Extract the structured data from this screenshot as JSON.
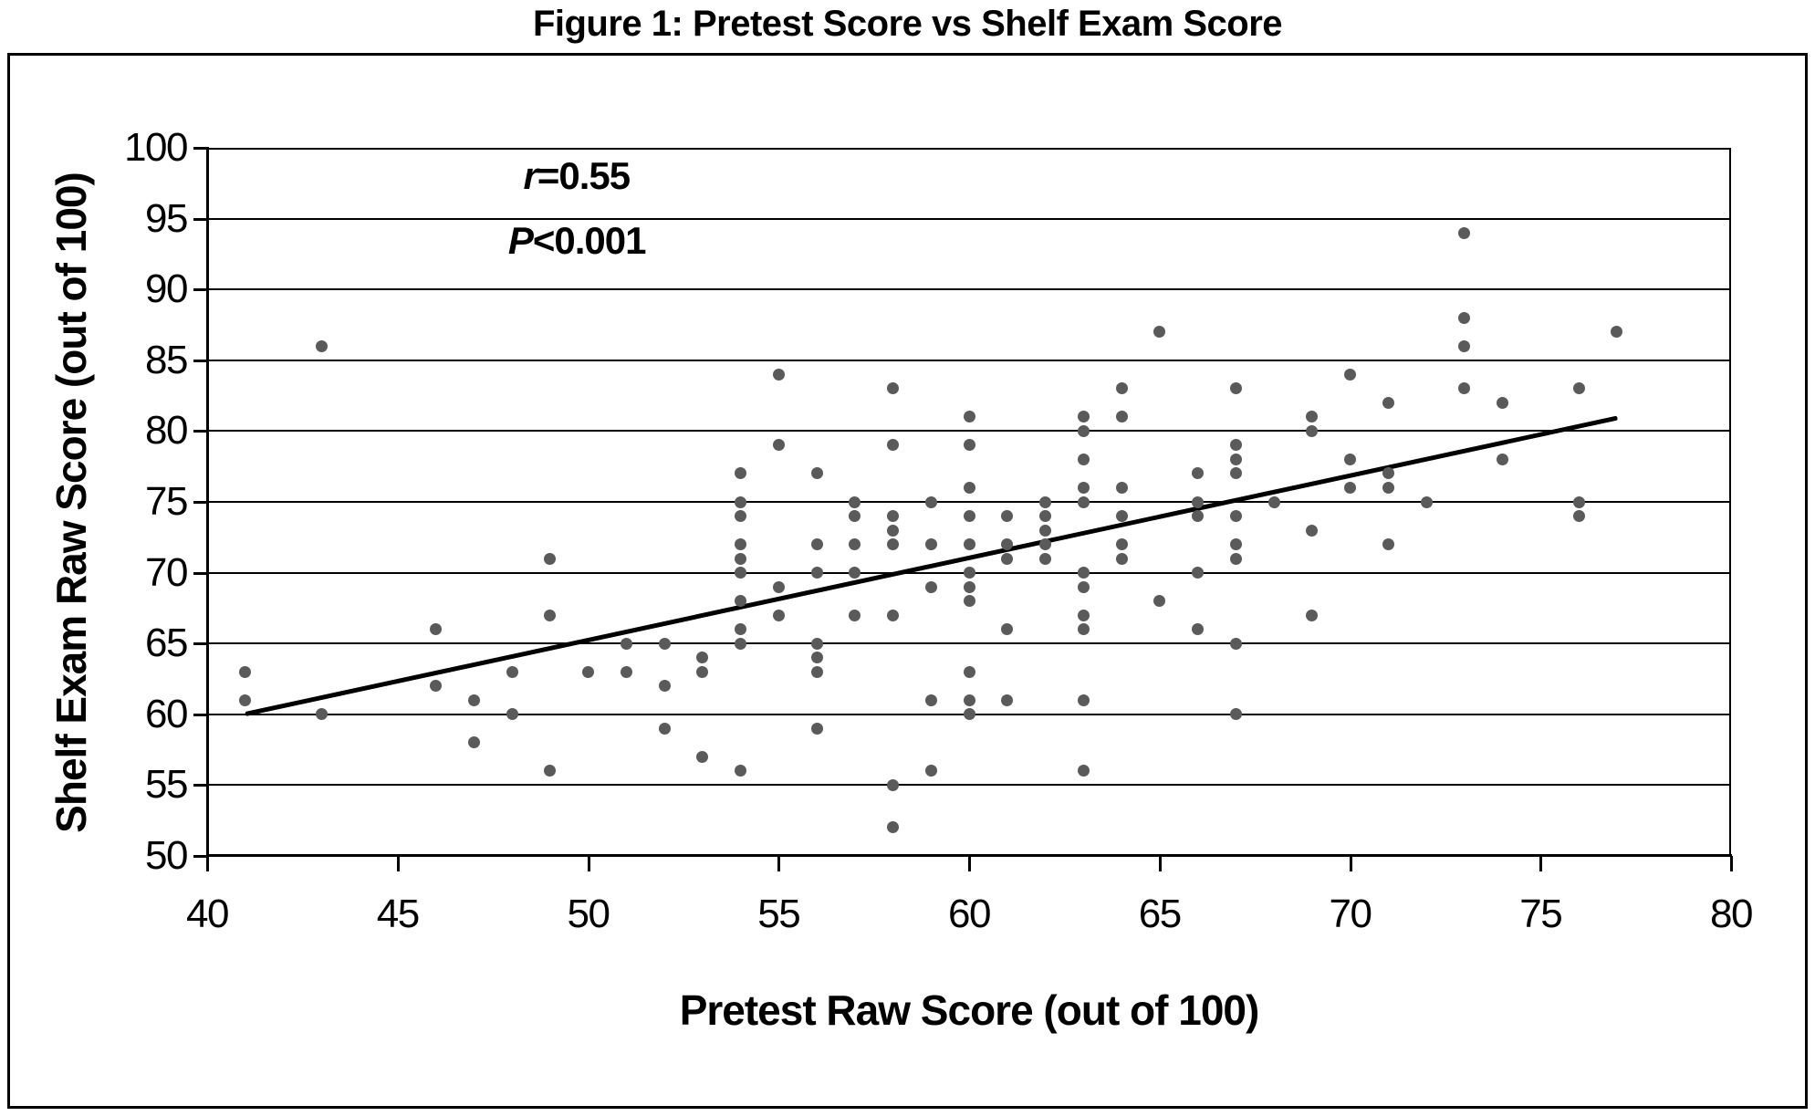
{
  "figure_title": "Figure 1: Pretest Score vs Shelf Exam Score",
  "chart_data": {
    "type": "scatter",
    "title": "Figure 1: Pretest Score vs Shelf Exam Score",
    "xlabel": "Pretest Raw Score (out of 100)",
    "ylabel": "Shelf Exam Raw Score (out of 100)",
    "xlim": [
      40,
      80
    ],
    "ylim": [
      50,
      100
    ],
    "xticks": [
      40,
      45,
      50,
      55,
      60,
      65,
      70,
      75,
      80
    ],
    "yticks": [
      50,
      55,
      60,
      65,
      70,
      75,
      80,
      85,
      90,
      95,
      100
    ],
    "grid": "horizontal",
    "legend": "none",
    "point_color": "#5a5a5a",
    "line_color": "#000000",
    "annotations": [
      {
        "italic": "r",
        "rest": "=0.55",
        "x": 48.3,
        "y": 97.9
      },
      {
        "italic": "P",
        "rest": "<0.001",
        "x": 47.9,
        "y": 93.3
      }
    ],
    "trendline": {
      "x1": 41,
      "y1": 60,
      "x2": 77,
      "y2": 80.9
    },
    "points": [
      [
        41,
        63
      ],
      [
        41,
        61
      ],
      [
        43,
        86
      ],
      [
        43,
        60
      ],
      [
        46,
        66
      ],
      [
        46,
        62
      ],
      [
        47,
        61
      ],
      [
        47,
        58
      ],
      [
        48,
        63
      ],
      [
        48,
        60
      ],
      [
        49,
        71
      ],
      [
        49,
        67
      ],
      [
        49,
        56
      ],
      [
        50,
        63
      ],
      [
        51,
        65
      ],
      [
        51,
        63
      ],
      [
        52,
        65
      ],
      [
        52,
        62
      ],
      [
        52,
        59
      ],
      [
        53,
        64
      ],
      [
        53,
        63
      ],
      [
        53,
        57
      ],
      [
        54,
        77
      ],
      [
        54,
        75
      ],
      [
        54,
        74
      ],
      [
        54,
        72
      ],
      [
        54,
        71
      ],
      [
        54,
        70
      ],
      [
        54,
        68
      ],
      [
        54,
        66
      ],
      [
        54,
        65
      ],
      [
        54,
        56
      ],
      [
        55,
        84
      ],
      [
        55,
        79
      ],
      [
        55,
        69
      ],
      [
        55,
        67
      ],
      [
        56,
        77
      ],
      [
        56,
        72
      ],
      [
        56,
        70
      ],
      [
        56,
        65
      ],
      [
        56,
        64
      ],
      [
        56,
        63
      ],
      [
        56,
        59
      ],
      [
        57,
        75
      ],
      [
        57,
        74
      ],
      [
        57,
        72
      ],
      [
        57,
        70
      ],
      [
        57,
        67
      ],
      [
        58,
        83
      ],
      [
        58,
        79
      ],
      [
        58,
        74
      ],
      [
        58,
        73
      ],
      [
        58,
        72
      ],
      [
        58,
        67
      ],
      [
        58,
        55
      ],
      [
        58,
        52
      ],
      [
        59,
        75
      ],
      [
        59,
        72
      ],
      [
        59,
        69
      ],
      [
        59,
        61
      ],
      [
        59,
        56
      ],
      [
        60,
        81
      ],
      [
        60,
        79
      ],
      [
        60,
        76
      ],
      [
        60,
        74
      ],
      [
        60,
        72
      ],
      [
        60,
        70
      ],
      [
        60,
        69
      ],
      [
        60,
        68
      ],
      [
        60,
        63
      ],
      [
        60,
        61
      ],
      [
        60,
        60
      ],
      [
        61,
        74
      ],
      [
        61,
        72
      ],
      [
        61,
        71
      ],
      [
        61,
        66
      ],
      [
        61,
        61
      ],
      [
        62,
        75
      ],
      [
        62,
        74
      ],
      [
        62,
        73
      ],
      [
        62,
        72
      ],
      [
        62,
        71
      ],
      [
        63,
        81
      ],
      [
        63,
        80
      ],
      [
        63,
        78
      ],
      [
        63,
        76
      ],
      [
        63,
        75
      ],
      [
        63,
        70
      ],
      [
        63,
        69
      ],
      [
        63,
        67
      ],
      [
        63,
        66
      ],
      [
        63,
        61
      ],
      [
        63,
        56
      ],
      [
        64,
        83
      ],
      [
        64,
        81
      ],
      [
        64,
        76
      ],
      [
        64,
        74
      ],
      [
        64,
        72
      ],
      [
        64,
        71
      ],
      [
        65,
        87
      ],
      [
        65,
        68
      ],
      [
        66,
        77
      ],
      [
        66,
        75
      ],
      [
        66,
        74
      ],
      [
        66,
        70
      ],
      [
        66,
        66
      ],
      [
        67,
        83
      ],
      [
        67,
        79
      ],
      [
        67,
        78
      ],
      [
        67,
        77
      ],
      [
        67,
        74
      ],
      [
        67,
        72
      ],
      [
        67,
        71
      ],
      [
        67,
        65
      ],
      [
        67,
        60
      ],
      [
        68,
        75
      ],
      [
        69,
        81
      ],
      [
        69,
        80
      ],
      [
        69,
        73
      ],
      [
        69,
        67
      ],
      [
        70,
        84
      ],
      [
        70,
        78
      ],
      [
        70,
        76
      ],
      [
        71,
        82
      ],
      [
        71,
        77
      ],
      [
        71,
        76
      ],
      [
        71,
        72
      ],
      [
        72,
        75
      ],
      [
        73,
        94
      ],
      [
        73,
        88
      ],
      [
        73,
        86
      ],
      [
        73,
        83
      ],
      [
        74,
        82
      ],
      [
        74,
        78
      ],
      [
        76,
        83
      ],
      [
        76,
        75
      ],
      [
        76,
        74
      ],
      [
        77,
        87
      ]
    ]
  }
}
